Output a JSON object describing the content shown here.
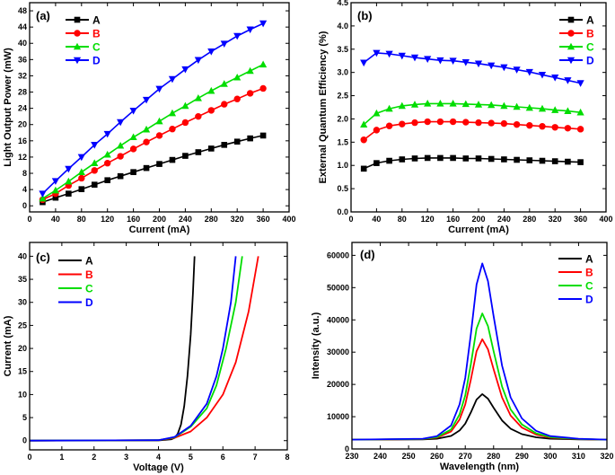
{
  "chart_data": [
    {
      "type": "line",
      "panel": "(a)",
      "xlabel": "Current (mA)",
      "ylabel": "Light Output Power (mW)",
      "xlim": [
        0,
        400
      ],
      "ylim": [
        -1.5,
        50
      ],
      "xticks": [
        0,
        40,
        80,
        120,
        160,
        200,
        240,
        280,
        320,
        360,
        400
      ],
      "yticks": [
        0,
        4,
        8,
        12,
        16,
        20,
        24,
        28,
        32,
        36,
        40,
        44,
        48
      ],
      "legend": "top-left",
      "x": [
        20,
        40,
        60,
        80,
        100,
        120,
        140,
        160,
        180,
        200,
        220,
        240,
        260,
        280,
        300,
        320,
        340,
        360
      ],
      "series": [
        {
          "name": "A",
          "color": "#000000",
          "marker": "square",
          "values": [
            0.9,
            2.0,
            3.0,
            4.1,
            5.2,
            6.3,
            7.3,
            8.3,
            9.3,
            10.3,
            11.3,
            12.3,
            13.2,
            14.1,
            15.0,
            15.8,
            16.6,
            17.3
          ]
        },
        {
          "name": "B",
          "color": "#ff0000",
          "marker": "circle",
          "values": [
            1.5,
            3.0,
            5.0,
            6.8,
            8.7,
            10.5,
            12.2,
            14.0,
            15.7,
            17.3,
            18.9,
            20.5,
            22.0,
            23.5,
            25.0,
            26.3,
            27.7,
            28.9
          ]
        },
        {
          "name": "C",
          "color": "#00dd00",
          "marker": "triangle-up",
          "values": [
            1.8,
            3.8,
            6.0,
            8.3,
            10.5,
            12.6,
            14.8,
            16.9,
            18.8,
            20.8,
            22.8,
            24.6,
            26.5,
            28.3,
            30.0,
            31.6,
            33.2,
            34.8
          ]
        },
        {
          "name": "D",
          "color": "#0000ff",
          "marker": "triangle-down",
          "values": [
            3.0,
            6.1,
            9.1,
            12.0,
            15.0,
            17.7,
            20.6,
            23.4,
            26.1,
            28.8,
            31.2,
            33.6,
            35.9,
            38.0,
            39.9,
            41.8,
            43.4,
            44.9
          ]
        }
      ]
    },
    {
      "type": "line",
      "panel": "(b)",
      "xlabel": "Current (mA)",
      "ylabel": "External Quantum Efficiency (%)",
      "xlim": [
        0,
        400
      ],
      "ylim": [
        0,
        4.5
      ],
      "xticks": [
        0,
        40,
        80,
        120,
        160,
        200,
        240,
        280,
        320,
        360,
        400
      ],
      "yticks": [
        "0.0",
        "0.5",
        "1.0",
        "1.5",
        "2.0",
        "2.5",
        "3.0",
        "3.5",
        "4.0",
        "4.5"
      ],
      "legend": "top-right",
      "x": [
        20,
        40,
        60,
        80,
        100,
        120,
        140,
        160,
        180,
        200,
        220,
        240,
        260,
        280,
        300,
        320,
        340,
        360
      ],
      "series": [
        {
          "name": "A",
          "color": "#000000",
          "marker": "square",
          "values": [
            0.93,
            1.05,
            1.1,
            1.13,
            1.15,
            1.16,
            1.16,
            1.16,
            1.15,
            1.15,
            1.14,
            1.13,
            1.12,
            1.11,
            1.1,
            1.09,
            1.08,
            1.07
          ]
        },
        {
          "name": "B",
          "color": "#ff0000",
          "marker": "circle",
          "values": [
            1.55,
            1.76,
            1.85,
            1.89,
            1.92,
            1.94,
            1.94,
            1.94,
            1.93,
            1.92,
            1.91,
            1.9,
            1.88,
            1.86,
            1.84,
            1.82,
            1.8,
            1.78
          ]
        },
        {
          "name": "C",
          "color": "#00dd00",
          "marker": "triangle-up",
          "values": [
            1.88,
            2.12,
            2.22,
            2.28,
            2.31,
            2.33,
            2.33,
            2.33,
            2.32,
            2.31,
            2.3,
            2.28,
            2.26,
            2.24,
            2.22,
            2.19,
            2.17,
            2.14
          ]
        },
        {
          "name": "D",
          "color": "#0000ff",
          "marker": "triangle-down",
          "values": [
            3.21,
            3.42,
            3.4,
            3.36,
            3.32,
            3.29,
            3.26,
            3.25,
            3.22,
            3.19,
            3.15,
            3.11,
            3.06,
            3.01,
            2.95,
            2.89,
            2.83,
            2.77
          ]
        }
      ]
    },
    {
      "type": "line",
      "panel": "(c)",
      "xlabel": "Voltage (V)",
      "ylabel": "Current (mA)",
      "xlim": [
        0,
        8
      ],
      "ylim": [
        -2,
        43
      ],
      "xticks": [
        0,
        1,
        2,
        3,
        4,
        5,
        6,
        7,
        8
      ],
      "yticks": [
        0,
        5,
        10,
        15,
        20,
        25,
        30,
        35,
        40
      ],
      "legend": "top-left",
      "series": [
        {
          "name": "A",
          "color": "#000000",
          "points": [
            [
              0,
              0
            ],
            [
              4,
              0.05
            ],
            [
              4.4,
              0.3
            ],
            [
              4.5,
              0.6
            ],
            [
              4.6,
              1.5
            ],
            [
              4.7,
              3.5
            ],
            [
              4.8,
              7.5
            ],
            [
              4.9,
              14
            ],
            [
              5.0,
              23
            ],
            [
              5.07,
              32
            ],
            [
              5.12,
              40
            ]
          ]
        },
        {
          "name": "B",
          "color": "#ff0000",
          "points": [
            [
              0,
              0
            ],
            [
              4,
              0.1
            ],
            [
              4.5,
              0.6
            ],
            [
              5,
              2
            ],
            [
              5.5,
              5
            ],
            [
              6,
              10
            ],
            [
              6.4,
              17
            ],
            [
              6.8,
              28
            ],
            [
              7.1,
              40
            ]
          ]
        },
        {
          "name": "C",
          "color": "#00dd00",
          "points": [
            [
              0,
              0
            ],
            [
              4,
              0.1
            ],
            [
              4.5,
              0.7
            ],
            [
              5,
              3
            ],
            [
              5.5,
              7
            ],
            [
              5.8,
              12
            ],
            [
              6.1,
              20
            ],
            [
              6.4,
              30
            ],
            [
              6.6,
              40
            ]
          ]
        },
        {
          "name": "D",
          "color": "#0000ff",
          "points": [
            [
              0,
              0
            ],
            [
              4,
              0.1
            ],
            [
              4.5,
              0.8
            ],
            [
              5,
              3.2
            ],
            [
              5.5,
              8
            ],
            [
              5.8,
              14
            ],
            [
              6.0,
              20
            ],
            [
              6.25,
              30
            ],
            [
              6.4,
              40
            ]
          ]
        }
      ]
    },
    {
      "type": "line",
      "panel": "(d)",
      "xlabel": "Wavelength (nm)",
      "ylabel": "Intensity (a.u.)",
      "xlim": [
        230,
        320
      ],
      "ylim": [
        0,
        64000
      ],
      "xticks": [
        230,
        240,
        250,
        260,
        270,
        280,
        290,
        300,
        310,
        320
      ],
      "yticks": [
        0,
        10000,
        20000,
        30000,
        40000,
        50000,
        60000
      ],
      "legend": "top-right",
      "x": [
        230,
        255,
        260,
        265,
        268,
        270,
        272,
        274,
        276,
        278,
        280,
        283,
        286,
        290,
        295,
        300,
        310,
        320
      ],
      "series": [
        {
          "name": "A",
          "color": "#000000",
          "values": [
            2900,
            2970,
            3180,
            4030,
            5720,
            7840,
            11360,
            15310,
            17000,
            15590,
            12770,
            8820,
            6280,
            4590,
            3610,
            3180,
            2970,
            2900
          ]
        },
        {
          "name": "B",
          "color": "#ff0000",
          "values": [
            2900,
            3060,
            3520,
            5390,
            9120,
            13790,
            21560,
            30270,
            34000,
            30890,
            24670,
            15960,
            10360,
            6630,
            4460,
            3520,
            3060,
            2900
          ]
        },
        {
          "name": "C",
          "color": "#00dd00",
          "values": [
            2900,
            3100,
            3680,
            6030,
            10720,
            16590,
            26360,
            37310,
            42000,
            38090,
            30270,
            19320,
            12280,
            7590,
            4860,
            3680,
            3100,
            2900
          ]
        },
        {
          "name": "D",
          "color": "#0000ff",
          "values": [
            2900,
            3170,
            3990,
            7270,
            13820,
            22010,
            35660,
            50950,
            57500,
            52040,
            41120,
            25830,
            16000,
            9450,
            5630,
            3990,
            3170,
            2900
          ]
        }
      ]
    }
  ]
}
